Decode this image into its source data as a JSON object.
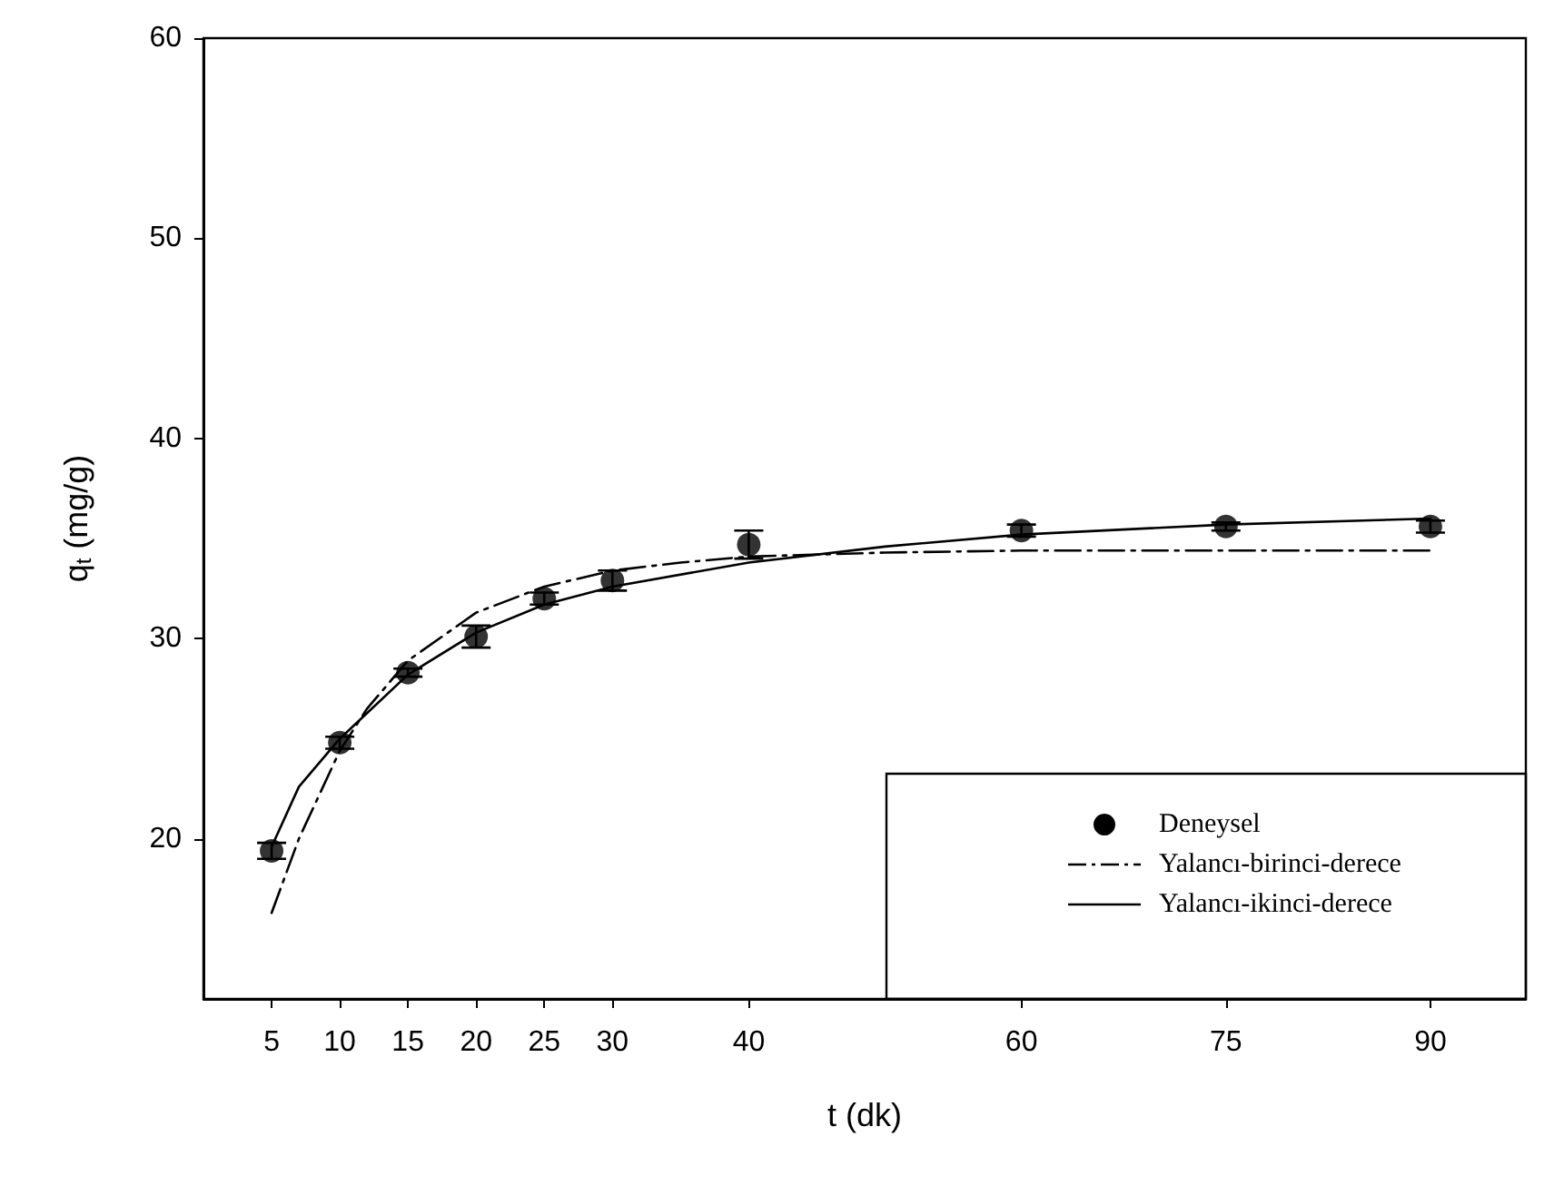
{
  "chart_data": {
    "type": "scatter",
    "xlabel": "t (dk)",
    "ylabel": "q$_{t}$ (mg/g)",
    "xlim": [
      0,
      97
    ],
    "xticks": [
      5,
      10,
      15,
      20,
      25,
      30,
      40,
      60,
      75,
      90
    ],
    "ylim": [
      12,
      60
    ],
    "yticks": [
      20,
      30,
      40,
      50,
      60
    ],
    "grid": false,
    "legend": "bottom right",
    "series": [
      {
        "name": "Deneysel",
        "color": "#000000",
        "marker": "circle",
        "x": [
          5,
          10,
          15,
          20,
          25,
          30,
          40,
          60,
          75,
          90
        ],
        "values": [
          19.4,
          24.8,
          28.3,
          30.1,
          32.0,
          32.9,
          34.7,
          35.4,
          35.6,
          35.6
        ],
        "errors": [
          0.4,
          0.3,
          0.2,
          0.55,
          0.3,
          0.5,
          0.7,
          0.3,
          0.2,
          0.3
        ]
      },
      {
        "name": "Yalancı-birinci-derece",
        "type": "line",
        "color": "#000000",
        "marker": "none",
        "line_style": "dashed",
        "x": [
          5,
          7,
          10,
          12,
          15,
          20,
          25,
          30,
          35,
          40,
          50,
          60,
          75,
          90
        ],
        "values": [
          16.3,
          20.0,
          24.4,
          26.5,
          28.9,
          31.3,
          32.6,
          33.4,
          33.8,
          34.1,
          34.3,
          34.4,
          34.4,
          34.4
        ]
      },
      {
        "name": "Yalancı-ikinci-derece",
        "type": "line",
        "color": "#000000",
        "marker": "none",
        "line_style": "solid",
        "x": [
          5,
          7,
          10,
          15,
          20,
          25,
          30,
          40,
          50,
          60,
          75,
          90
        ],
        "values": [
          19.6,
          22.6,
          25.0,
          28.2,
          30.3,
          31.7,
          32.6,
          33.8,
          34.6,
          35.2,
          35.7,
          36.0
        ]
      }
    ]
  }
}
